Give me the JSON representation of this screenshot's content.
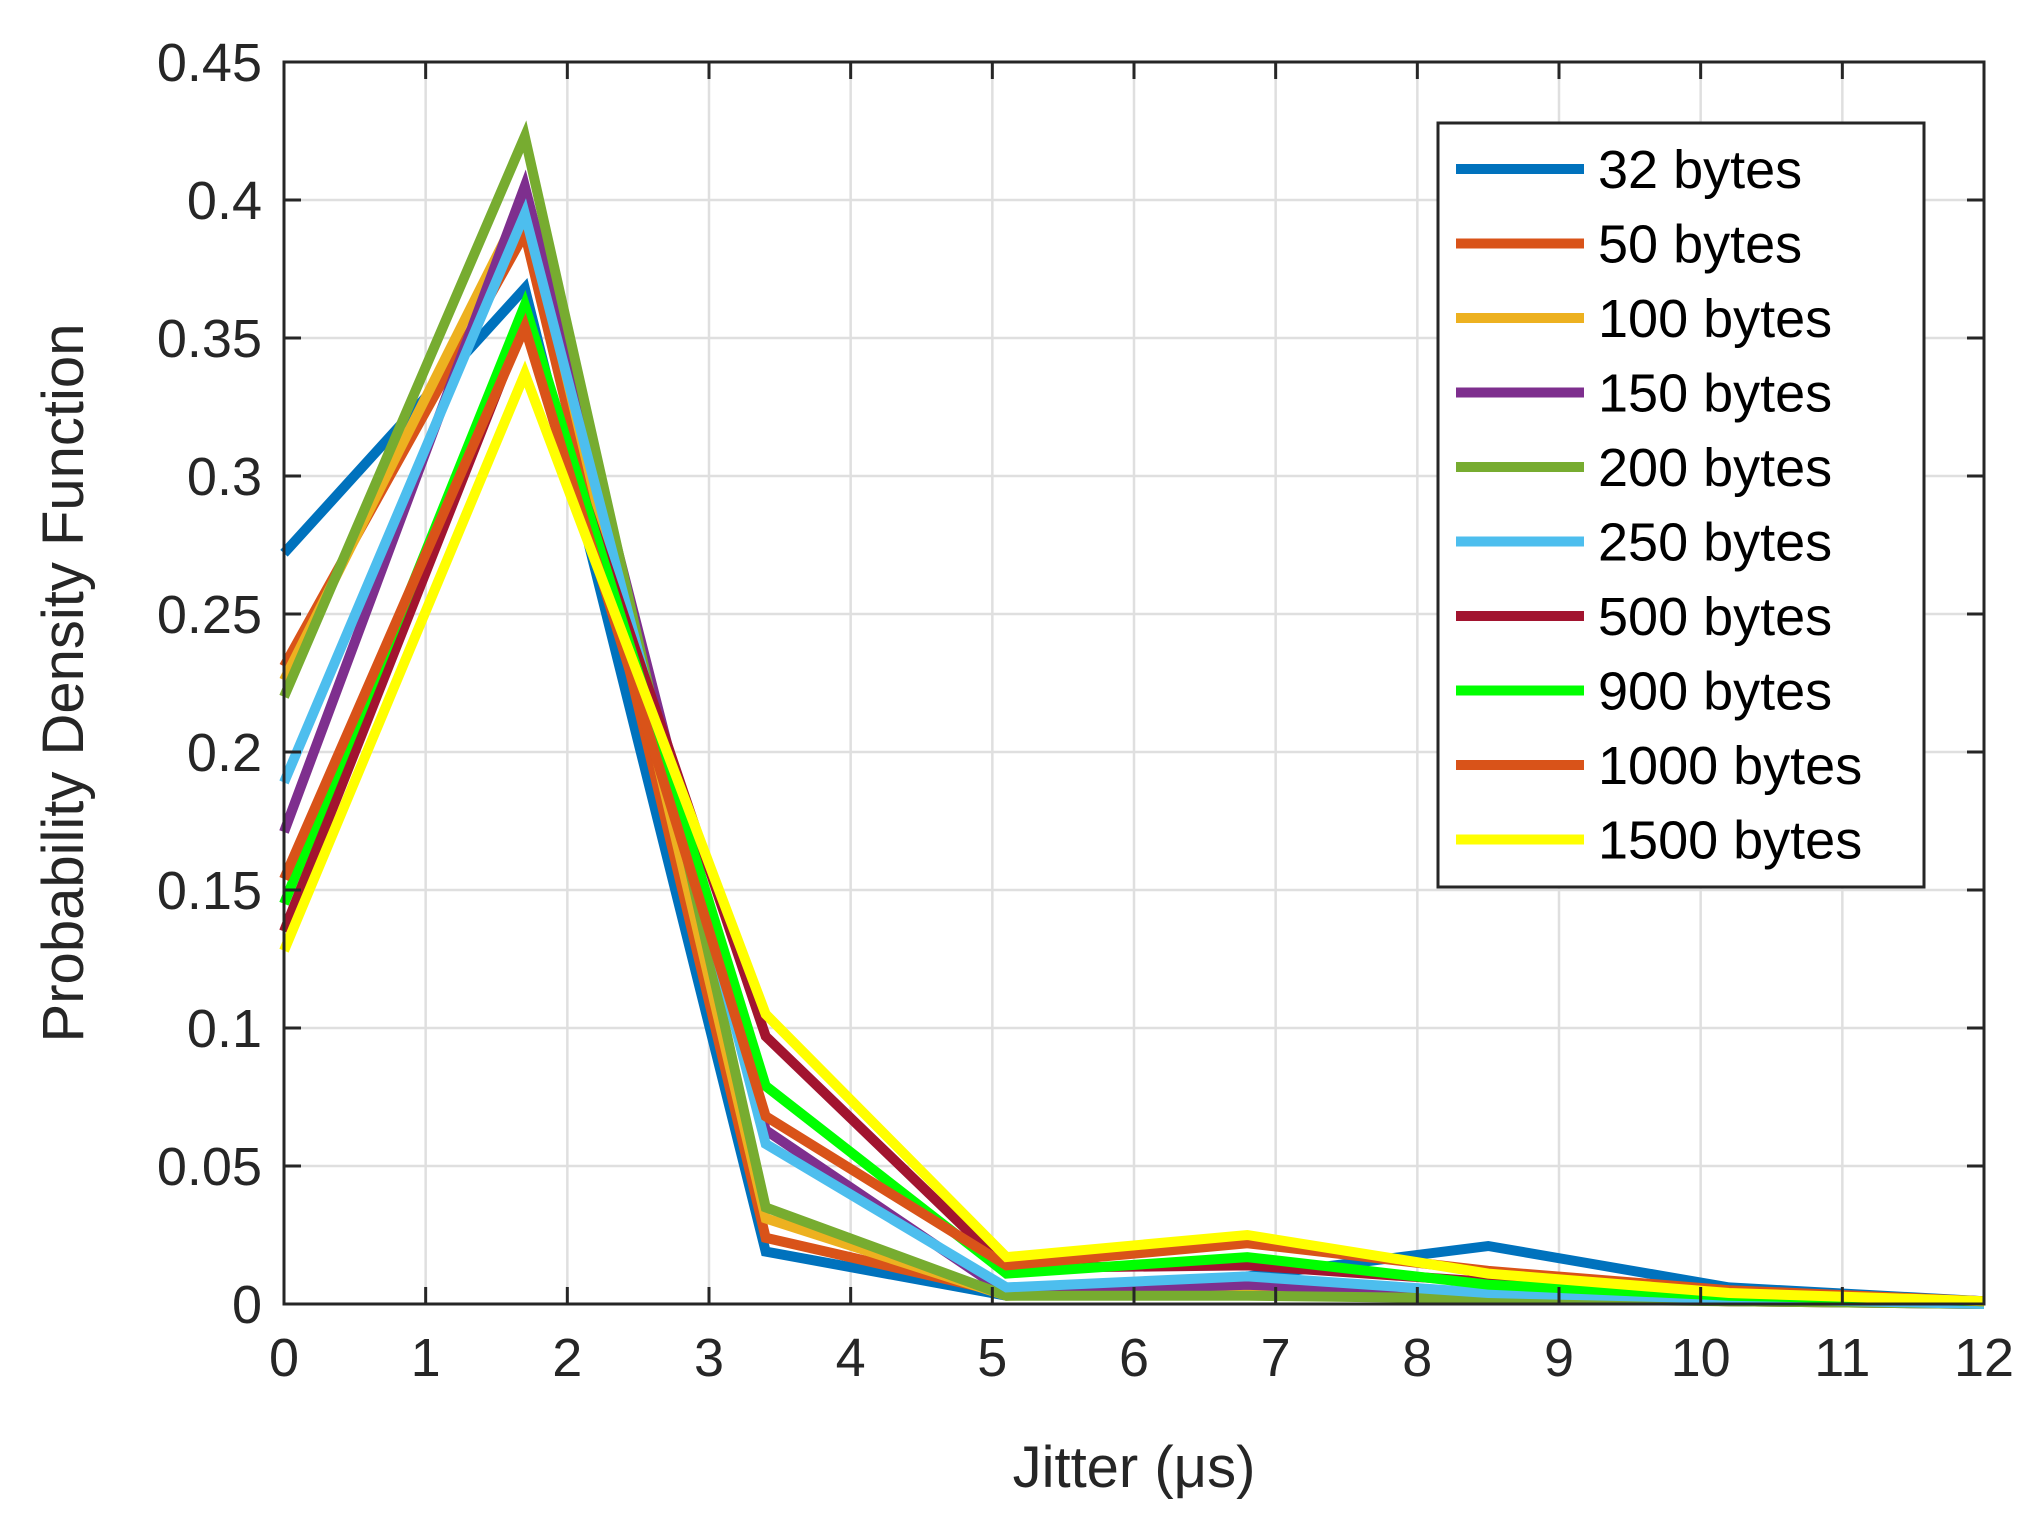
{
  "chart_data": {
    "type": "line",
    "title": "",
    "xlabel": "Jitter (μs)",
    "ylabel": "Probability Density Function",
    "xlim": [
      0,
      12
    ],
    "ylim": [
      0,
      0.45
    ],
    "xticks": [
      0,
      1,
      2,
      3,
      4,
      5,
      6,
      7,
      8,
      9,
      10,
      11,
      12
    ],
    "yticks": [
      0,
      0.05,
      0.1,
      0.15,
      0.2,
      0.25,
      0.3,
      0.35,
      0.4,
      0.45
    ],
    "xtick_labels": [
      "0",
      "1",
      "2",
      "3",
      "4",
      "5",
      "6",
      "7",
      "8",
      "9",
      "10",
      "11",
      "12"
    ],
    "ytick_labels": [
      "0",
      "0.05",
      "0.1",
      "0.15",
      "0.2",
      "0.25",
      "0.3",
      "0.35",
      "0.4",
      "0.45"
    ],
    "grid": true,
    "legend_position": "top-right",
    "x": [
      0,
      1.7,
      3.4,
      5.1,
      6.8,
      8.5,
      10.2,
      12
    ],
    "series": [
      {
        "name": "32 bytes",
        "color": "#0072BD",
        "values": [
          0.272,
          0.368,
          0.019,
          0.003,
          0.01,
          0.021,
          0.006,
          0.001
        ]
      },
      {
        "name": "50 bytes",
        "color": "#D95319",
        "values": [
          0.231,
          0.388,
          0.024,
          0.004,
          0.008,
          0.004,
          0.002,
          0.001
        ]
      },
      {
        "name": "100 bytes",
        "color": "#EDB120",
        "values": [
          0.226,
          0.4,
          0.031,
          0.003,
          0.005,
          0.003,
          0.001,
          0.0
        ]
      },
      {
        "name": "150 bytes",
        "color": "#7E2F8E",
        "values": [
          0.171,
          0.405,
          0.063,
          0.004,
          0.007,
          0.003,
          0.001,
          0.0
        ]
      },
      {
        "name": "200 bytes",
        "color": "#77AC30",
        "values": [
          0.22,
          0.423,
          0.035,
          0.003,
          0.003,
          0.002,
          0.001,
          0.0
        ]
      },
      {
        "name": "250 bytes",
        "color": "#4DBEEE",
        "values": [
          0.189,
          0.395,
          0.058,
          0.006,
          0.01,
          0.004,
          0.002,
          0.0
        ]
      },
      {
        "name": "500 bytes",
        "color": "#A2142F",
        "values": [
          0.135,
          0.356,
          0.097,
          0.013,
          0.014,
          0.008,
          0.004,
          0.001
        ]
      },
      {
        "name": "900 bytes",
        "color": "#00FF00",
        "values": [
          0.145,
          0.362,
          0.079,
          0.011,
          0.017,
          0.007,
          0.003,
          0.001
        ]
      },
      {
        "name": "1000 bytes",
        "color": "#D95319",
        "values": [
          0.154,
          0.354,
          0.068,
          0.014,
          0.022,
          0.012,
          0.005,
          0.001
        ]
      },
      {
        "name": "1500 bytes",
        "color": "#FFFF00",
        "values": [
          0.128,
          0.337,
          0.105,
          0.017,
          0.025,
          0.011,
          0.004,
          0.001
        ]
      }
    ]
  }
}
